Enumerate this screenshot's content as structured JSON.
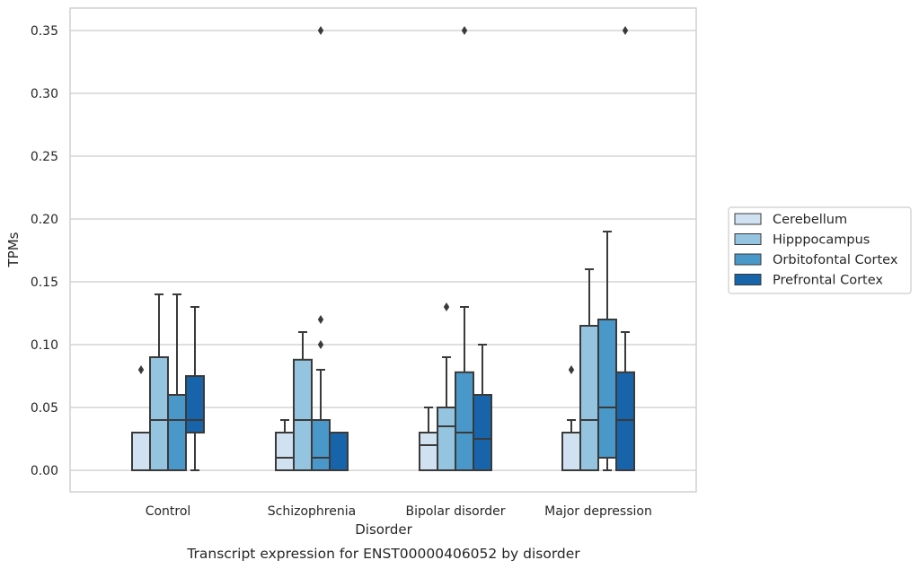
{
  "chart_data": {
    "type": "box",
    "caption": "Transcript expression for ENST00000406052 by disorder",
    "xlabel": "Disorder",
    "ylabel": "TPMs",
    "ylim": [
      -0.017,
      0.368
    ],
    "yticks": [
      0.0,
      0.05,
      0.1,
      0.15,
      0.2,
      0.25,
      0.3,
      0.35
    ],
    "ytick_labels": [
      "0.00",
      "0.05",
      "0.10",
      "0.15",
      "0.20",
      "0.25",
      "0.30",
      "0.35"
    ],
    "grid": true,
    "legend_position": "right",
    "categories": [
      "Control",
      "Schizophrenia",
      "Bipolar disorder",
      "Major depression"
    ],
    "series": [
      {
        "name": "Cerebellum",
        "color": "#d0e1f2",
        "boxes": [
          {
            "whislo": 0.0,
            "q1": 0.0,
            "med": 0.0,
            "q3": 0.03,
            "whishi": 0.03,
            "fliers": [
              0.08
            ]
          },
          {
            "whislo": 0.0,
            "q1": 0.0,
            "med": 0.01,
            "q3": 0.03,
            "whishi": 0.04,
            "fliers": []
          },
          {
            "whislo": 0.0,
            "q1": 0.0,
            "med": 0.02,
            "q3": 0.03,
            "whishi": 0.05,
            "fliers": []
          },
          {
            "whislo": 0.0,
            "q1": 0.0,
            "med": 0.0,
            "q3": 0.03,
            "whishi": 0.04,
            "fliers": [
              0.08
            ]
          }
        ]
      },
      {
        "name": "Hipppocampus",
        "color": "#94c4df",
        "boxes": [
          {
            "whislo": 0.0,
            "q1": 0.0,
            "med": 0.04,
            "q3": 0.09,
            "whishi": 0.14,
            "fliers": []
          },
          {
            "whislo": 0.0,
            "q1": 0.0,
            "med": 0.04,
            "q3": 0.088,
            "whishi": 0.11,
            "fliers": []
          },
          {
            "whislo": 0.0,
            "q1": 0.0,
            "med": 0.035,
            "q3": 0.05,
            "whishi": 0.09,
            "fliers": [
              0.13
            ]
          },
          {
            "whislo": 0.0,
            "q1": 0.0,
            "med": 0.04,
            "q3": 0.115,
            "whishi": 0.16,
            "fliers": []
          }
        ]
      },
      {
        "name": "Orbitofontal Cortex",
        "color": "#4a98c9",
        "boxes": [
          {
            "whislo": 0.0,
            "q1": 0.0,
            "med": 0.04,
            "q3": 0.06,
            "whishi": 0.14,
            "fliers": []
          },
          {
            "whislo": 0.0,
            "q1": 0.0,
            "med": 0.01,
            "q3": 0.04,
            "whishi": 0.08,
            "fliers": [
              0.1,
              0.12,
              0.35
            ]
          },
          {
            "whislo": 0.0,
            "q1": 0.0,
            "med": 0.03,
            "q3": 0.078,
            "whishi": 0.13,
            "fliers": [
              0.35
            ]
          },
          {
            "whislo": 0.0,
            "q1": 0.01,
            "med": 0.05,
            "q3": 0.12,
            "whishi": 0.19,
            "fliers": []
          }
        ]
      },
      {
        "name": "Prefrontal Cortex",
        "color": "#1764ab",
        "boxes": [
          {
            "whislo": 0.0,
            "q1": 0.03,
            "med": 0.04,
            "q3": 0.075,
            "whishi": 0.13,
            "fliers": []
          },
          {
            "whislo": 0.0,
            "q1": 0.0,
            "med": 0.0,
            "q3": 0.03,
            "whishi": 0.03,
            "fliers": []
          },
          {
            "whislo": 0.0,
            "q1": 0.0,
            "med": 0.025,
            "q3": 0.06,
            "whishi": 0.1,
            "fliers": []
          },
          {
            "whislo": 0.0,
            "q1": 0.0,
            "med": 0.04,
            "q3": 0.078,
            "whishi": 0.11,
            "fliers": [
              0.35
            ]
          }
        ]
      }
    ]
  }
}
